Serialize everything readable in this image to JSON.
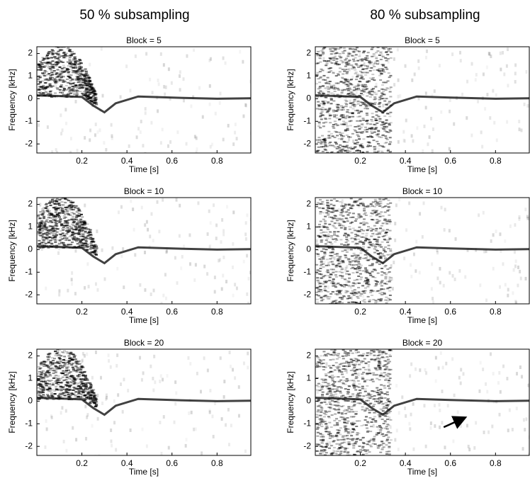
{
  "columns": [
    "50 % subsampling",
    "80 % subsampling"
  ],
  "chart_data": [
    {
      "type": "spectrogram",
      "title": "Block = 5",
      "x_label": "Time [s]",
      "y_label": "Frequency [kHz]",
      "xlim": [
        0,
        0.95
      ],
      "ylim": [
        -2.4,
        2.3
      ],
      "xticks": [
        0.2,
        0.4,
        0.6,
        0.8
      ],
      "yticks": [
        -2,
        -1,
        0,
        1,
        2
      ]
    },
    {
      "type": "spectrogram",
      "title": "Block = 5",
      "x_label": "Time [s]",
      "y_label": "Frequency [kHz]",
      "xlim": [
        0,
        0.95
      ],
      "ylim": [
        -2.4,
        2.3
      ],
      "xticks": [
        0.2,
        0.4,
        0.6,
        0.8
      ],
      "yticks": [
        -2,
        -1,
        0,
        1,
        2
      ]
    },
    {
      "type": "spectrogram",
      "title": "Block = 10",
      "x_label": "Time [s]",
      "y_label": "Frequency [kHz]",
      "xlim": [
        0,
        0.95
      ],
      "ylim": [
        -2.4,
        2.3
      ],
      "xticks": [
        0.2,
        0.4,
        0.6,
        0.8
      ],
      "yticks": [
        -2,
        -1,
        0,
        1,
        2
      ]
    },
    {
      "type": "spectrogram",
      "title": "Block = 10",
      "x_label": "Time [s]",
      "y_label": "Frequency [kHz]",
      "xlim": [
        0,
        0.95
      ],
      "ylim": [
        -2.4,
        2.3
      ],
      "xticks": [
        0.2,
        0.4,
        0.6,
        0.8
      ],
      "yticks": [
        -2,
        -1,
        0,
        1,
        2
      ]
    },
    {
      "type": "spectrogram",
      "title": "Block = 20",
      "x_label": "Time [s]",
      "y_label": "Frequency [kHz]",
      "xlim": [
        0,
        0.95
      ],
      "ylim": [
        -2.4,
        2.3
      ],
      "xticks": [
        0.2,
        0.4,
        0.6,
        0.8
      ],
      "yticks": [
        -2,
        -1,
        0,
        1,
        2
      ]
    },
    {
      "type": "spectrogram",
      "title": "Block = 20",
      "x_label": "Time [s]",
      "y_label": "Frequency [kHz]",
      "xlim": [
        0,
        0.95
      ],
      "ylim": [
        -2.4,
        2.3
      ],
      "xticks": [
        0.2,
        0.4,
        0.6,
        0.8
      ],
      "yticks": [
        -2,
        -1,
        0,
        1,
        2
      ]
    }
  ]
}
